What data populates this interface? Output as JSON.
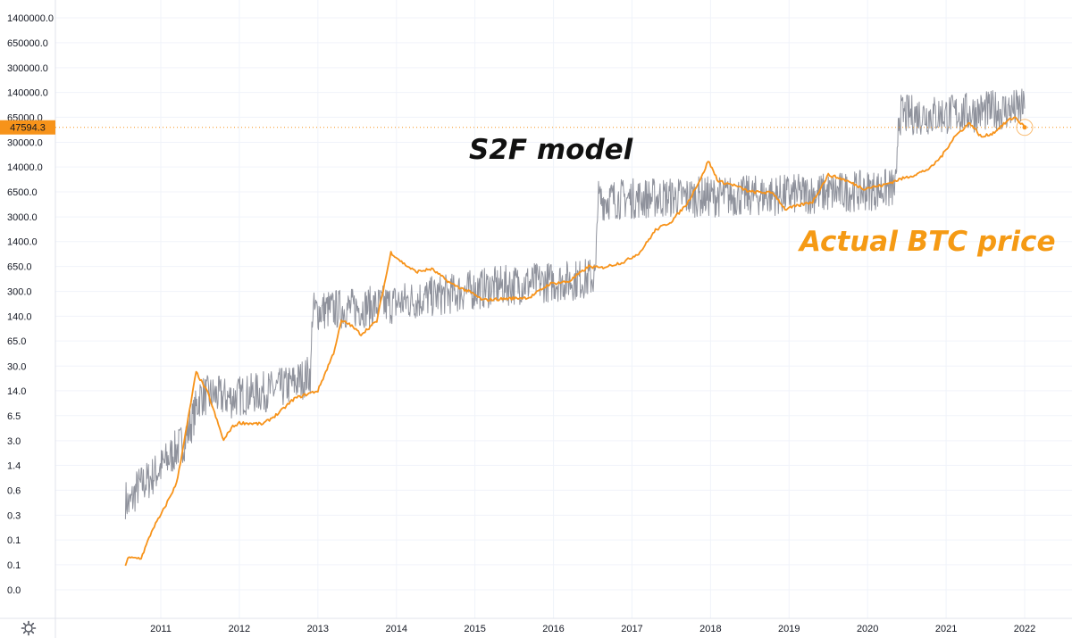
{
  "chart_data": {
    "type": "line",
    "scale": "log",
    "grid": true,
    "title": "",
    "xlabel": "",
    "ylabel": "",
    "ylim": [
      0.02,
      1400000
    ],
    "xlim": [
      2010.45,
      2022.1
    ],
    "y_ticks": [
      {
        "value": 1400000,
        "label": "1400000.0"
      },
      {
        "value": 650000,
        "label": "650000.0"
      },
      {
        "value": 300000,
        "label": "300000.0"
      },
      {
        "value": 140000,
        "label": "140000.0"
      },
      {
        "value": 65000,
        "label": "65000.0"
      },
      {
        "value": 30000,
        "label": "30000.0"
      },
      {
        "value": 14000,
        "label": "14000.0"
      },
      {
        "value": 6500,
        "label": "6500.0"
      },
      {
        "value": 3000,
        "label": "3000.0"
      },
      {
        "value": 1400,
        "label": "1400.0"
      },
      {
        "value": 650,
        "label": "650.0"
      },
      {
        "value": 300,
        "label": "300.0"
      },
      {
        "value": 140,
        "label": "140.0"
      },
      {
        "value": 65,
        "label": "65.0"
      },
      {
        "value": 30,
        "label": "30.0"
      },
      {
        "value": 14,
        "label": "14.0"
      },
      {
        "value": 6.5,
        "label": "6.5"
      },
      {
        "value": 3,
        "label": "3.0"
      },
      {
        "value": 1.4,
        "label": "1.4"
      },
      {
        "value": 0.65,
        "label": "0.6"
      },
      {
        "value": 0.3,
        "label": "0.3"
      },
      {
        "value": 0.14,
        "label": "0.1"
      },
      {
        "value": 0.065,
        "label": "0.1"
      },
      {
        "value": 0.03,
        "label": "0.0"
      }
    ],
    "x_ticks": [
      {
        "value": 2011,
        "label": "2011"
      },
      {
        "value": 2012,
        "label": "2012"
      },
      {
        "value": 2013,
        "label": "2013"
      },
      {
        "value": 2014,
        "label": "2014"
      },
      {
        "value": 2015,
        "label": "2015"
      },
      {
        "value": 2016,
        "label": "2016"
      },
      {
        "value": 2017,
        "label": "2017"
      },
      {
        "value": 2018,
        "label": "2018"
      },
      {
        "value": 2019,
        "label": "2019"
      },
      {
        "value": 2020,
        "label": "2020"
      },
      {
        "value": 2021,
        "label": "2021"
      },
      {
        "value": 2022,
        "label": "2022"
      }
    ],
    "series": [
      {
        "name": "S2F model",
        "color": "#8f929c",
        "x": [
          2010.55,
          2010.6,
          2010.7,
          2010.85,
          2011.0,
          2011.15,
          2011.3,
          2011.4,
          2011.5,
          2011.7,
          2011.9,
          2012.0,
          2012.2,
          2012.4,
          2012.6,
          2012.8,
          2012.91,
          2012.93,
          2013.1,
          2013.3,
          2013.5,
          2013.7,
          2013.9,
          2014.1,
          2014.4,
          2014.7,
          2015.0,
          2015.3,
          2015.6,
          2015.9,
          2016.2,
          2016.45,
          2016.54,
          2016.56,
          2016.8,
          2017.0,
          2017.3,
          2017.6,
          2017.85,
          2018.0,
          2018.3,
          2018.6,
          2018.9,
          2019.2,
          2019.5,
          2019.8,
          2020.1,
          2020.3,
          2020.37,
          2020.39,
          2020.6,
          2020.9,
          2021.1,
          2021.3,
          2021.5,
          2021.6,
          2021.8,
          2022.0
        ],
        "y": [
          0.5,
          0.4,
          0.7,
          0.9,
          1.3,
          2.0,
          3.0,
          5.5,
          12,
          12,
          11,
          12,
          13,
          14,
          16,
          20,
          24,
          160,
          170,
          175,
          180,
          190,
          200,
          220,
          250,
          280,
          320,
          350,
          380,
          400,
          420,
          450,
          480,
          5000,
          5200,
          5300,
          5400,
          5500,
          5600,
          5600,
          5700,
          5800,
          5900,
          6100,
          6300,
          6600,
          6900,
          7200,
          7400,
          70000,
          70000,
          70000,
          72000,
          75000,
          78000,
          80000,
          82000,
          85000
        ]
      },
      {
        "name": "Actual BTC price",
        "color": "#f7931a",
        "x": [
          2010.55,
          2010.58,
          2010.75,
          2010.9,
          2011.0,
          2011.2,
          2011.3,
          2011.45,
          2011.6,
          2011.8,
          2011.9,
          2012.0,
          2012.3,
          2012.5,
          2012.7,
          2012.9,
          2013.0,
          2013.2,
          2013.3,
          2013.4,
          2013.55,
          2013.75,
          2013.88,
          2013.93,
          2014.1,
          2014.25,
          2014.45,
          2014.7,
          2014.95,
          2015.1,
          2015.4,
          2015.7,
          2015.95,
          2016.2,
          2016.45,
          2016.6,
          2016.9,
          2017.1,
          2017.3,
          2017.5,
          2017.7,
          2017.9,
          2017.97,
          2018.1,
          2018.3,
          2018.5,
          2018.8,
          2018.95,
          2019.3,
          2019.5,
          2019.7,
          2019.95,
          2020.2,
          2020.4,
          2020.6,
          2020.8,
          2020.95,
          2021.1,
          2021.3,
          2021.45,
          2021.6,
          2021.8,
          2021.88,
          2022.0
        ],
        "y": [
          0.065,
          0.08,
          0.08,
          0.2,
          0.3,
          0.8,
          3.0,
          25,
          13,
          3.0,
          4.5,
          5.2,
          5.0,
          7.0,
          11,
          13,
          14,
          45,
          120,
          110,
          80,
          120,
          550,
          1000,
          700,
          550,
          600,
          380,
          290,
          230,
          240,
          250,
          380,
          410,
          650,
          620,
          750,
          1000,
          2000,
          2600,
          4500,
          11000,
          17000,
          9000,
          8000,
          6500,
          6300,
          3800,
          4800,
          11000,
          9500,
          7200,
          8000,
          9500,
          11000,
          13500,
          20000,
          35000,
          55000,
          35000,
          40000,
          60000,
          65000,
          47594.3
        ]
      }
    ],
    "annotations": [
      {
        "text": "S2F model",
        "color": "#111111"
      },
      {
        "text": "Actual BTC price",
        "color": "#f59a14"
      }
    ],
    "last_price": {
      "value": 47594.3,
      "label": "47594.3",
      "color": "#f7931a"
    },
    "grid_color": "#f0f3fa"
  },
  "icons": {
    "settings": "gear-icon"
  }
}
